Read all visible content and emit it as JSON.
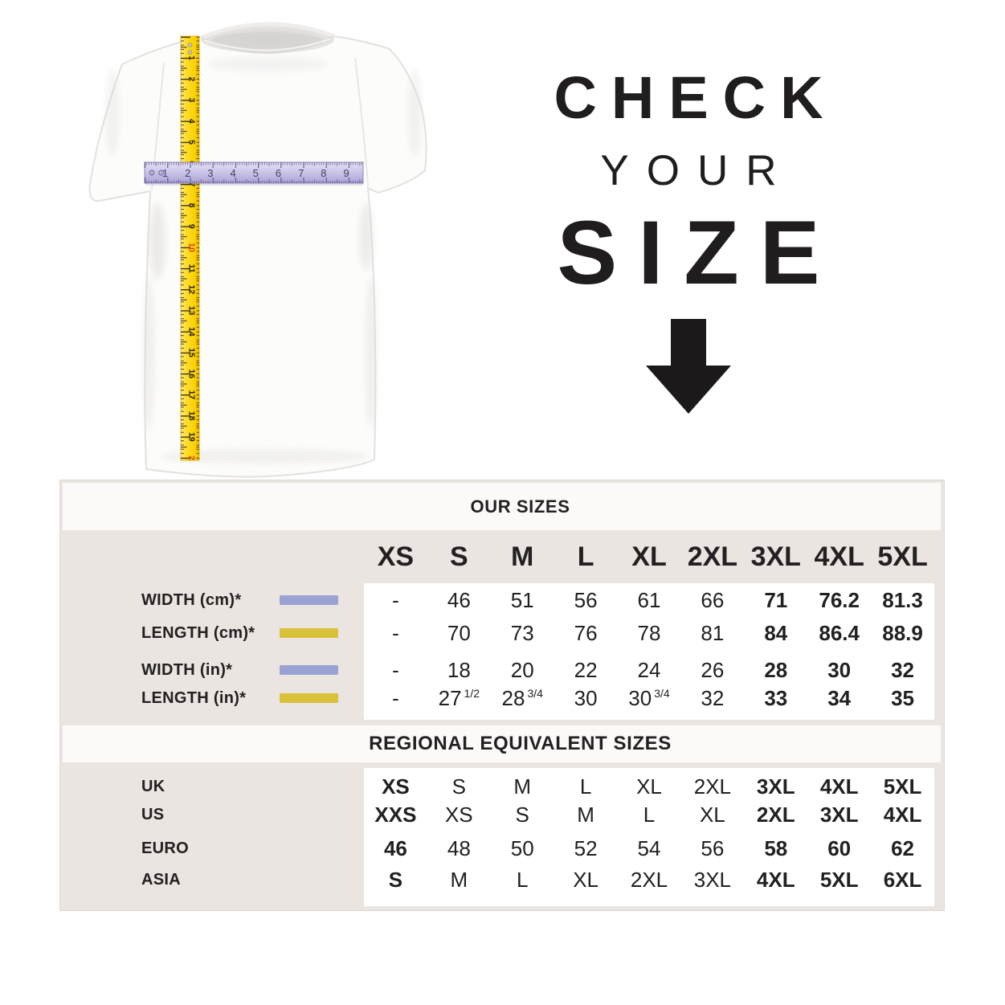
{
  "headline": {
    "line1": "CHECK",
    "line2": "YOUR",
    "line3": "SIZE",
    "arrow_icon": "down-arrow",
    "text_color": "#201d1e"
  },
  "size_table": {
    "our_sizes_title": "OUR SIZES",
    "regional_title": "REGIONAL EQUIVALENT SIZES",
    "columns": [
      "XS",
      "S",
      "M",
      "L",
      "XL",
      "2XL",
      "3XL",
      "4XL",
      "5XL"
    ],
    "measurement_rows": [
      {
        "label": "WIDTH (cm)*",
        "swatch_color": "#9aa2d3",
        "swatch_name": "width-tape-swatch",
        "values": [
          "-",
          "46",
          "51",
          "56",
          "61",
          "66",
          "71",
          "76.2",
          "81.3"
        ],
        "bold_cols": [
          6,
          7,
          8
        ]
      },
      {
        "label": "LENGTH (cm)*",
        "swatch_color": "#d9c13a",
        "swatch_name": "length-tape-swatch",
        "values": [
          "-",
          "70",
          "73",
          "76",
          "78",
          "81",
          "84",
          "86.4",
          "88.9"
        ],
        "bold_cols": [
          6,
          7,
          8
        ]
      },
      {
        "label": "WIDTH (in)*",
        "swatch_color": "#9aa2d3",
        "swatch_name": "width-tape-swatch",
        "values": [
          "-",
          "18",
          "20",
          "22",
          "24",
          "26",
          "28",
          "30",
          "32"
        ],
        "bold_cols": [
          6,
          7,
          8
        ]
      },
      {
        "label": "LENGTH (in)*",
        "swatch_color": "#d9c13a",
        "swatch_name": "length-tape-swatch",
        "values": [
          "-",
          {
            "main": "27",
            "sup": "1/2"
          },
          {
            "main": "28",
            "sup": "3/4"
          },
          "30",
          {
            "main": "30",
            "sup": "3/4"
          },
          "32",
          "33",
          "34",
          "35"
        ],
        "bold_cols": [
          6,
          7,
          8
        ]
      }
    ],
    "regional_rows": [
      {
        "label": "UK",
        "values": [
          "XS",
          "S",
          "M",
          "L",
          "XL",
          "2XL",
          "3XL",
          "4XL",
          "5XL"
        ],
        "bold_cols": [
          0,
          6,
          7,
          8
        ]
      },
      {
        "label": "US",
        "values": [
          "XXS",
          "XS",
          "S",
          "M",
          "L",
          "XL",
          "2XL",
          "3XL",
          "4XL"
        ],
        "bold_cols": [
          0,
          6,
          7,
          8
        ]
      },
      {
        "label": "EURO",
        "values": [
          "46",
          "48",
          "50",
          "52",
          "54",
          "56",
          "58",
          "60",
          "62"
        ],
        "bold_cols": [
          0,
          6,
          7,
          8
        ]
      },
      {
        "label": "ASIA",
        "values": [
          "S",
          "M",
          "L",
          "XL",
          "2XL",
          "3XL",
          "4XL",
          "5XL",
          "6XL"
        ],
        "bold_cols": [
          0,
          6,
          7,
          8
        ]
      }
    ],
    "colors": {
      "panel_beige": "#eae5e1",
      "band_white": "#fcfaf9",
      "data_white": "#ffffff",
      "text": "#232021"
    }
  },
  "tshirt_figure": {
    "vertical_tape": {
      "name": "yellow-length-measuring-tape",
      "unit_numbers": [
        "1",
        "2",
        "3",
        "4",
        "5",
        "6",
        "7",
        "8",
        "9",
        "10",
        "11",
        "12",
        "13",
        "14",
        "15",
        "16",
        "17",
        "18",
        "19",
        "2"
      ],
      "red_indices": [
        9,
        19
      ],
      "color": "#ffd92b"
    },
    "horizontal_tape": {
      "name": "lavender-width-measuring-tape",
      "unit_numbers": [
        "1",
        "2",
        "3",
        "4",
        "5",
        "6",
        "7",
        "8",
        "9"
      ],
      "color": "#c9c3e8"
    }
  }
}
